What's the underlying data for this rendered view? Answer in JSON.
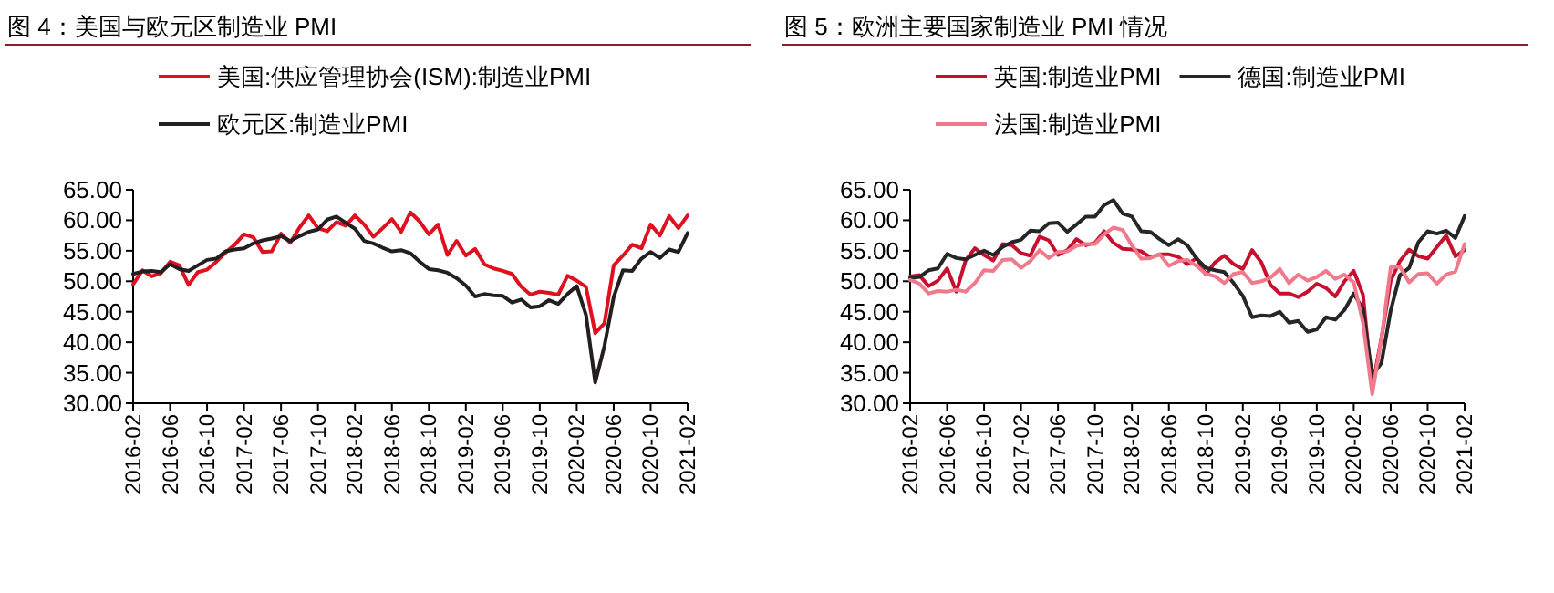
{
  "chart_data": [
    {
      "type": "line",
      "title": "图 4：美国与欧元区制造业 PMI",
      "legend": "top",
      "grid": false,
      "x": [
        "2016-02",
        "2016-03",
        "2016-04",
        "2016-05",
        "2016-06",
        "2016-07",
        "2016-08",
        "2016-09",
        "2016-10",
        "2016-11",
        "2016-12",
        "2017-01",
        "2017-02",
        "2017-03",
        "2017-04",
        "2017-05",
        "2017-06",
        "2017-07",
        "2017-08",
        "2017-09",
        "2017-10",
        "2017-11",
        "2017-12",
        "2018-01",
        "2018-02",
        "2018-03",
        "2018-04",
        "2018-05",
        "2018-06",
        "2018-07",
        "2018-08",
        "2018-09",
        "2018-10",
        "2018-11",
        "2018-12",
        "2019-01",
        "2019-02",
        "2019-03",
        "2019-04",
        "2019-05",
        "2019-06",
        "2019-07",
        "2019-08",
        "2019-09",
        "2019-10",
        "2019-11",
        "2019-12",
        "2020-01",
        "2020-02",
        "2020-03",
        "2020-04",
        "2020-05",
        "2020-06",
        "2020-07",
        "2020-08",
        "2020-09",
        "2020-10",
        "2020-11",
        "2020-12",
        "2021-01",
        "2021-02"
      ],
      "xlim": [
        "2016-02",
        "2021-02"
      ],
      "xticks": [
        "2016-02",
        "2016-06",
        "2016-10",
        "2017-02",
        "2017-06",
        "2017-10",
        "2018-02",
        "2018-06",
        "2018-10",
        "2019-02",
        "2019-06",
        "2019-10",
        "2020-02",
        "2020-06",
        "2020-10",
        "2021-02"
      ],
      "ylim": [
        30,
        65
      ],
      "yticks": [
        {
          "value": 30,
          "label": "30.00"
        },
        {
          "value": 35,
          "label": "35.00"
        },
        {
          "value": 40,
          "label": "40.00"
        },
        {
          "value": 45,
          "label": "45.00"
        },
        {
          "value": 50,
          "label": "50.00"
        },
        {
          "value": 55,
          "label": "55.00"
        },
        {
          "value": 60,
          "label": "60.00"
        },
        {
          "value": 65,
          "label": "65.00"
        }
      ],
      "series": [
        {
          "name": "美国:供应管理协会(ISM):制造业PMI",
          "color": "#e0101e",
          "values": [
            49.5,
            51.8,
            50.8,
            51.3,
            53.2,
            52.6,
            49.4,
            51.5,
            51.9,
            53.2,
            54.7,
            56.0,
            57.7,
            57.2,
            54.8,
            54.9,
            57.8,
            56.3,
            58.8,
            60.8,
            58.7,
            58.2,
            59.7,
            59.1,
            60.8,
            59.3,
            57.3,
            58.7,
            60.2,
            58.1,
            61.3,
            59.8,
            57.7,
            59.3,
            54.3,
            56.6,
            54.2,
            55.3,
            52.8,
            52.1,
            51.7,
            51.2,
            49.1,
            47.8,
            48.3,
            48.1,
            47.8,
            50.9,
            50.1,
            49.1,
            41.5,
            43.1,
            52.6,
            54.2,
            56.0,
            55.4,
            59.3,
            57.5,
            60.7,
            58.7,
            60.8
          ]
        },
        {
          "name": "欧元区:制造业PMI",
          "color": "#231f20",
          "values": [
            51.2,
            51.6,
            51.7,
            51.5,
            52.8,
            52.0,
            51.7,
            52.6,
            53.5,
            53.7,
            54.9,
            55.2,
            55.4,
            56.2,
            56.7,
            57.0,
            57.4,
            56.6,
            57.4,
            58.1,
            58.5,
            60.1,
            60.6,
            59.6,
            58.6,
            56.6,
            56.2,
            55.5,
            54.9,
            55.1,
            54.6,
            53.2,
            52.0,
            51.8,
            51.4,
            50.5,
            49.3,
            47.5,
            47.9,
            47.7,
            47.6,
            46.5,
            47.0,
            45.7,
            45.9,
            46.9,
            46.3,
            47.9,
            49.2,
            44.5,
            33.4,
            39.4,
            47.4,
            51.8,
            51.7,
            53.7,
            54.8,
            53.8,
            55.2,
            54.8,
            57.9
          ]
        }
      ]
    },
    {
      "type": "line",
      "title": "图 5：欧洲主要国家制造业 PMI 情况",
      "legend": "top",
      "grid": false,
      "x": [
        "2016-02",
        "2016-03",
        "2016-04",
        "2016-05",
        "2016-06",
        "2016-07",
        "2016-08",
        "2016-09",
        "2016-10",
        "2016-11",
        "2016-12",
        "2017-01",
        "2017-02",
        "2017-03",
        "2017-04",
        "2017-05",
        "2017-06",
        "2017-07",
        "2017-08",
        "2017-09",
        "2017-10",
        "2017-11",
        "2017-12",
        "2018-01",
        "2018-02",
        "2018-03",
        "2018-04",
        "2018-05",
        "2018-06",
        "2018-07",
        "2018-08",
        "2018-09",
        "2018-10",
        "2018-11",
        "2018-12",
        "2019-01",
        "2019-02",
        "2019-03",
        "2019-04",
        "2019-05",
        "2019-06",
        "2019-07",
        "2019-08",
        "2019-09",
        "2019-10",
        "2019-11",
        "2019-12",
        "2020-01",
        "2020-02",
        "2020-03",
        "2020-04",
        "2020-05",
        "2020-06",
        "2020-07",
        "2020-08",
        "2020-09",
        "2020-10",
        "2020-11",
        "2020-12",
        "2021-01",
        "2021-02"
      ],
      "xlim": [
        "2016-02",
        "2021-02"
      ],
      "xticks": [
        "2016-02",
        "2016-06",
        "2016-10",
        "2017-02",
        "2017-06",
        "2017-10",
        "2018-02",
        "2018-06",
        "2018-10",
        "2019-02",
        "2019-06",
        "2019-10",
        "2020-02",
        "2020-06",
        "2020-10",
        "2021-02"
      ],
      "ylim": [
        30,
        65
      ],
      "yticks": [
        {
          "value": 30,
          "label": "30.00"
        },
        {
          "value": 35,
          "label": "35.00"
        },
        {
          "value": 40,
          "label": "40.00"
        },
        {
          "value": 45,
          "label": "45.00"
        },
        {
          "value": 50,
          "label": "50.00"
        },
        {
          "value": 55,
          "label": "55.00"
        },
        {
          "value": 60,
          "label": "60.00"
        },
        {
          "value": 65,
          "label": "65.00"
        }
      ],
      "series": [
        {
          "name": "英国:制造业PMI",
          "color": "#c8102e",
          "values": [
            50.8,
            51.0,
            49.2,
            50.1,
            52.1,
            48.3,
            53.4,
            55.4,
            54.3,
            53.4,
            56.1,
            55.9,
            54.6,
            54.2,
            57.3,
            56.7,
            54.3,
            55.1,
            56.9,
            55.9,
            56.3,
            58.2,
            56.3,
            55.3,
            55.2,
            54.9,
            53.9,
            54.4,
            54.4,
            54.0,
            52.8,
            53.8,
            51.1,
            53.1,
            54.2,
            52.8,
            52.0,
            55.1,
            53.1,
            49.4,
            48.0,
            48.0,
            47.4,
            48.3,
            49.6,
            48.9,
            47.5,
            50.0,
            51.7,
            47.8,
            32.6,
            40.7,
            50.1,
            53.3,
            55.2,
            54.1,
            53.7,
            55.6,
            57.5,
            54.1,
            55.1
          ]
        },
        {
          "name": "德国:制造业PMI",
          "color": "#262626",
          "values": [
            50.5,
            50.7,
            51.8,
            52.1,
            54.5,
            53.8,
            53.6,
            54.3,
            55.0,
            54.3,
            55.6,
            56.4,
            56.8,
            58.3,
            58.2,
            59.5,
            59.6,
            58.1,
            59.3,
            60.6,
            60.6,
            62.5,
            63.3,
            61.1,
            60.6,
            58.2,
            58.1,
            56.9,
            55.9,
            56.9,
            55.9,
            53.7,
            52.2,
            51.8,
            51.5,
            49.7,
            47.6,
            44.1,
            44.4,
            44.3,
            45.0,
            43.2,
            43.5,
            41.7,
            42.1,
            44.1,
            43.7,
            45.3,
            48.0,
            45.4,
            34.5,
            36.6,
            45.2,
            51.0,
            52.2,
            56.4,
            58.2,
            57.8,
            58.3,
            57.1,
            60.7
          ]
        },
        {
          "name": "法国:制造业PMI",
          "color": "#f07a8c",
          "values": [
            50.2,
            49.6,
            48.0,
            48.4,
            48.3,
            48.6,
            48.3,
            49.7,
            51.8,
            51.7,
            53.5,
            53.6,
            52.2,
            53.3,
            55.1,
            53.8,
            54.8,
            54.9,
            55.8,
            56.1,
            56.1,
            57.7,
            58.8,
            58.4,
            55.9,
            53.7,
            53.8,
            54.4,
            52.5,
            53.3,
            53.5,
            52.5,
            51.2,
            50.8,
            49.7,
            51.2,
            51.5,
            49.7,
            50.0,
            50.6,
            52.0,
            49.7,
            51.1,
            50.1,
            50.7,
            51.7,
            50.4,
            51.1,
            49.8,
            43.2,
            31.5,
            40.6,
            52.3,
            52.4,
            49.8,
            51.2,
            51.3,
            49.6,
            51.1,
            51.6,
            56.1
          ]
        }
      ]
    }
  ]
}
